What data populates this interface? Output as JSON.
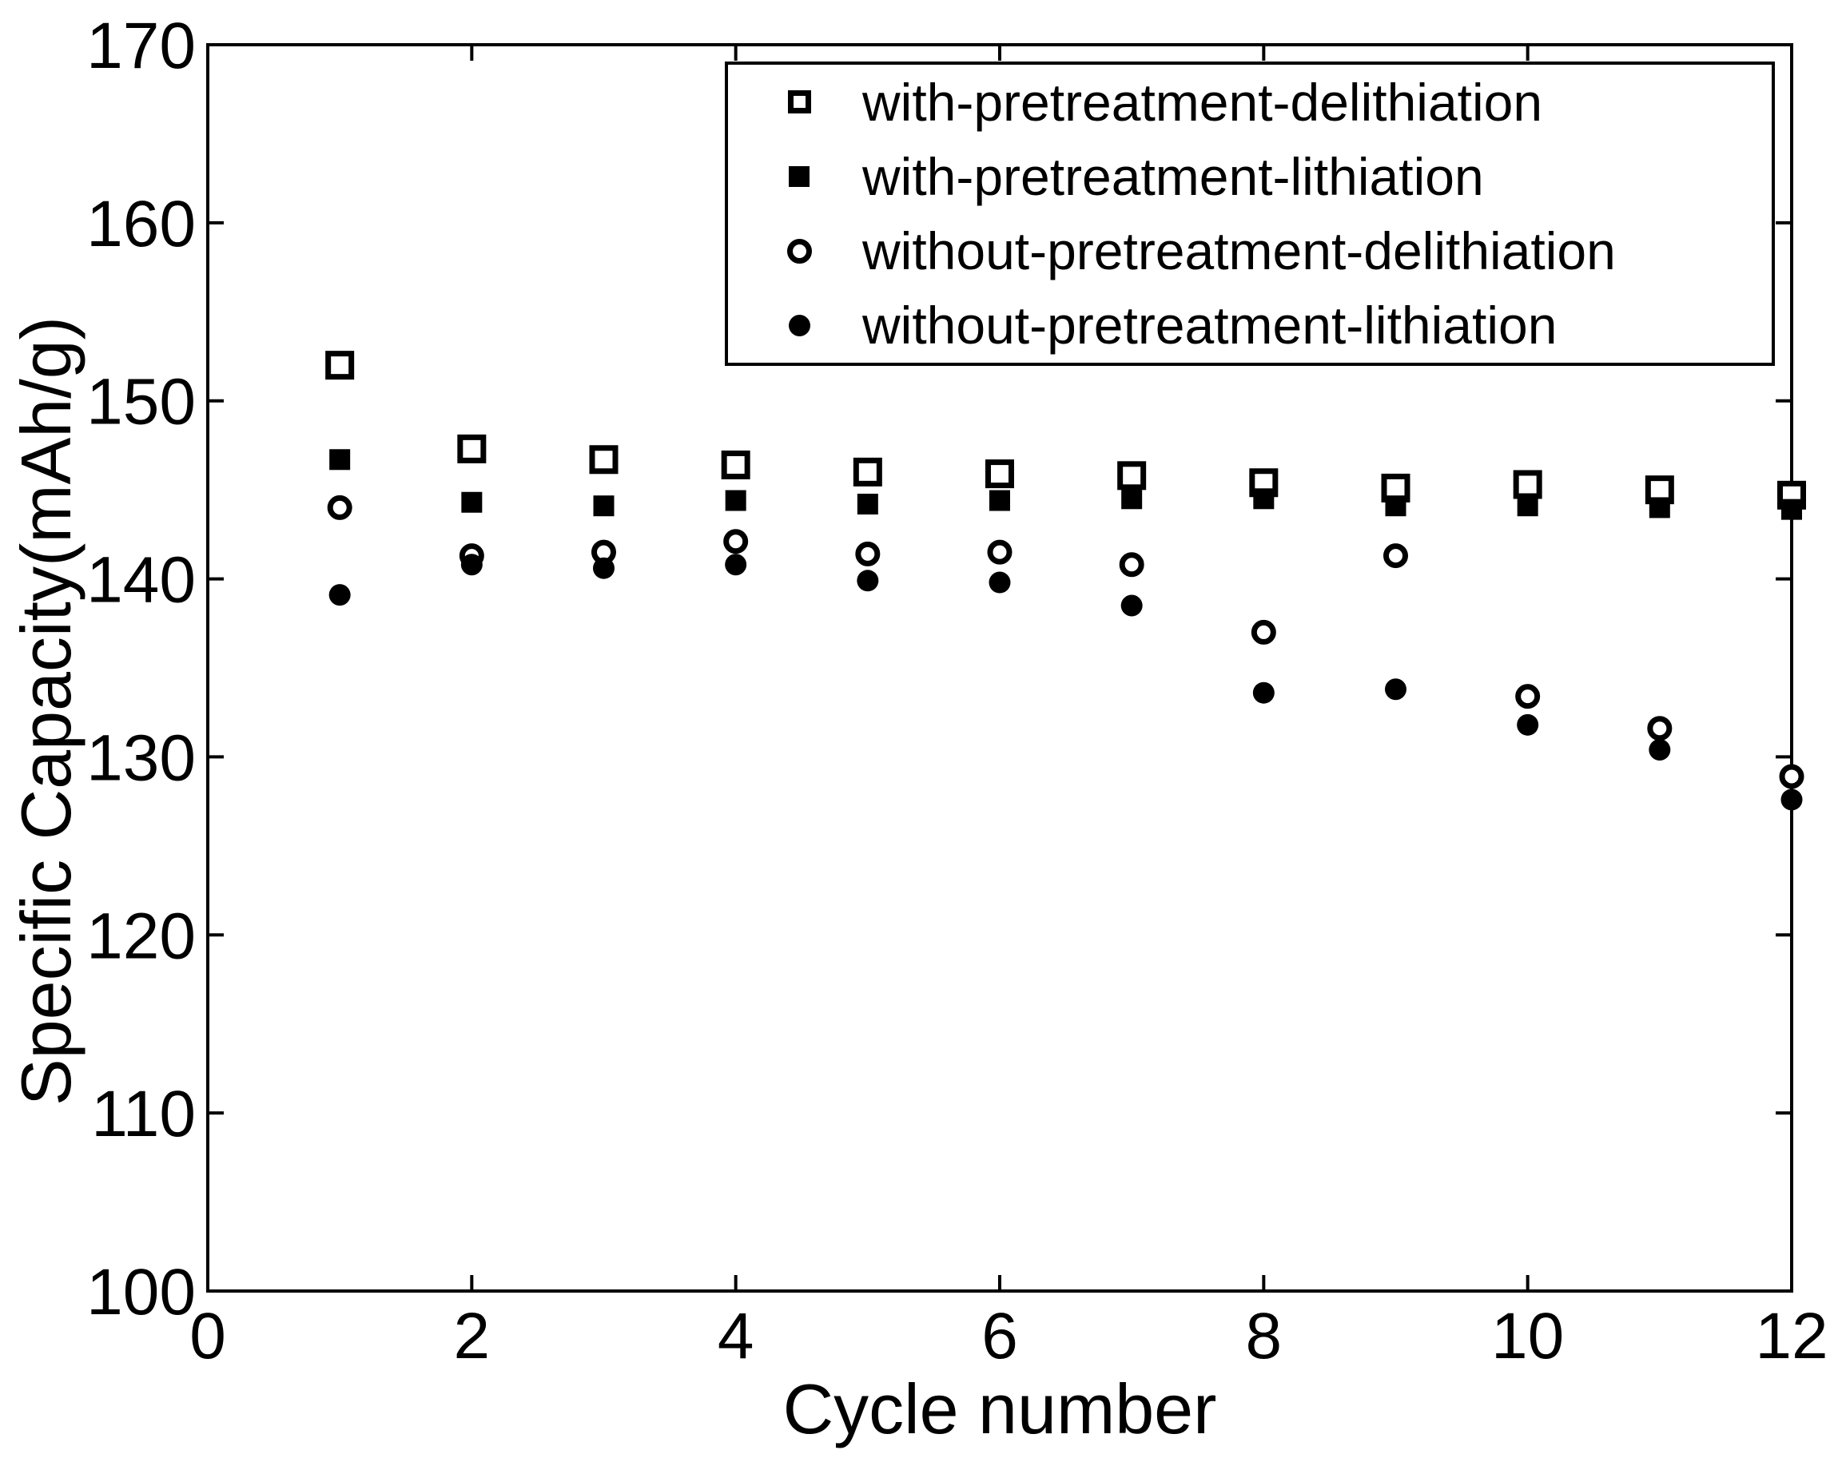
{
  "figure": {
    "background_color": "#ffffff",
    "foreground_color": "#000000"
  },
  "chart_data": {
    "type": "scatter",
    "title": "",
    "xlabel": "Cycle number",
    "ylabel": "Specific Capacity(mAh/g)",
    "xlim": [
      0,
      12
    ],
    "ylim": [
      100,
      170
    ],
    "x_ticks": [
      0,
      2,
      4,
      6,
      8,
      10,
      12
    ],
    "y_ticks": [
      100,
      110,
      120,
      130,
      140,
      150,
      160,
      170
    ],
    "grid": false,
    "legend_position": "inside-top",
    "x": [
      1,
      2,
      3,
      4,
      5,
      6,
      7,
      8,
      9,
      10,
      11,
      12
    ],
    "series": [
      {
        "label": "with-pretreatment-delithiation",
        "marker": "open-square",
        "values": [
          152.0,
          147.3,
          146.7,
          146.4,
          146.0,
          145.9,
          145.8,
          145.4,
          145.1,
          145.3,
          145.0,
          144.7
        ]
      },
      {
        "label": "with-pretreatment-lithiation",
        "marker": "filled-square",
        "values": [
          146.7,
          144.3,
          144.1,
          144.4,
          144.2,
          144.4,
          144.5,
          144.5,
          144.1,
          144.1,
          144.0,
          143.9
        ]
      },
      {
        "label": "without-pretreatment-delithiation",
        "marker": "open-circle",
        "values": [
          144.0,
          141.3,
          141.5,
          142.1,
          141.4,
          141.5,
          140.8,
          137.0,
          141.3,
          133.4,
          131.6,
          128.9
        ]
      },
      {
        "label": "without-pretreatment-lithiation",
        "marker": "filled-circle",
        "values": [
          139.1,
          140.8,
          140.6,
          140.8,
          139.9,
          139.8,
          138.5,
          133.6,
          133.8,
          131.8,
          130.4,
          127.6
        ]
      }
    ]
  }
}
